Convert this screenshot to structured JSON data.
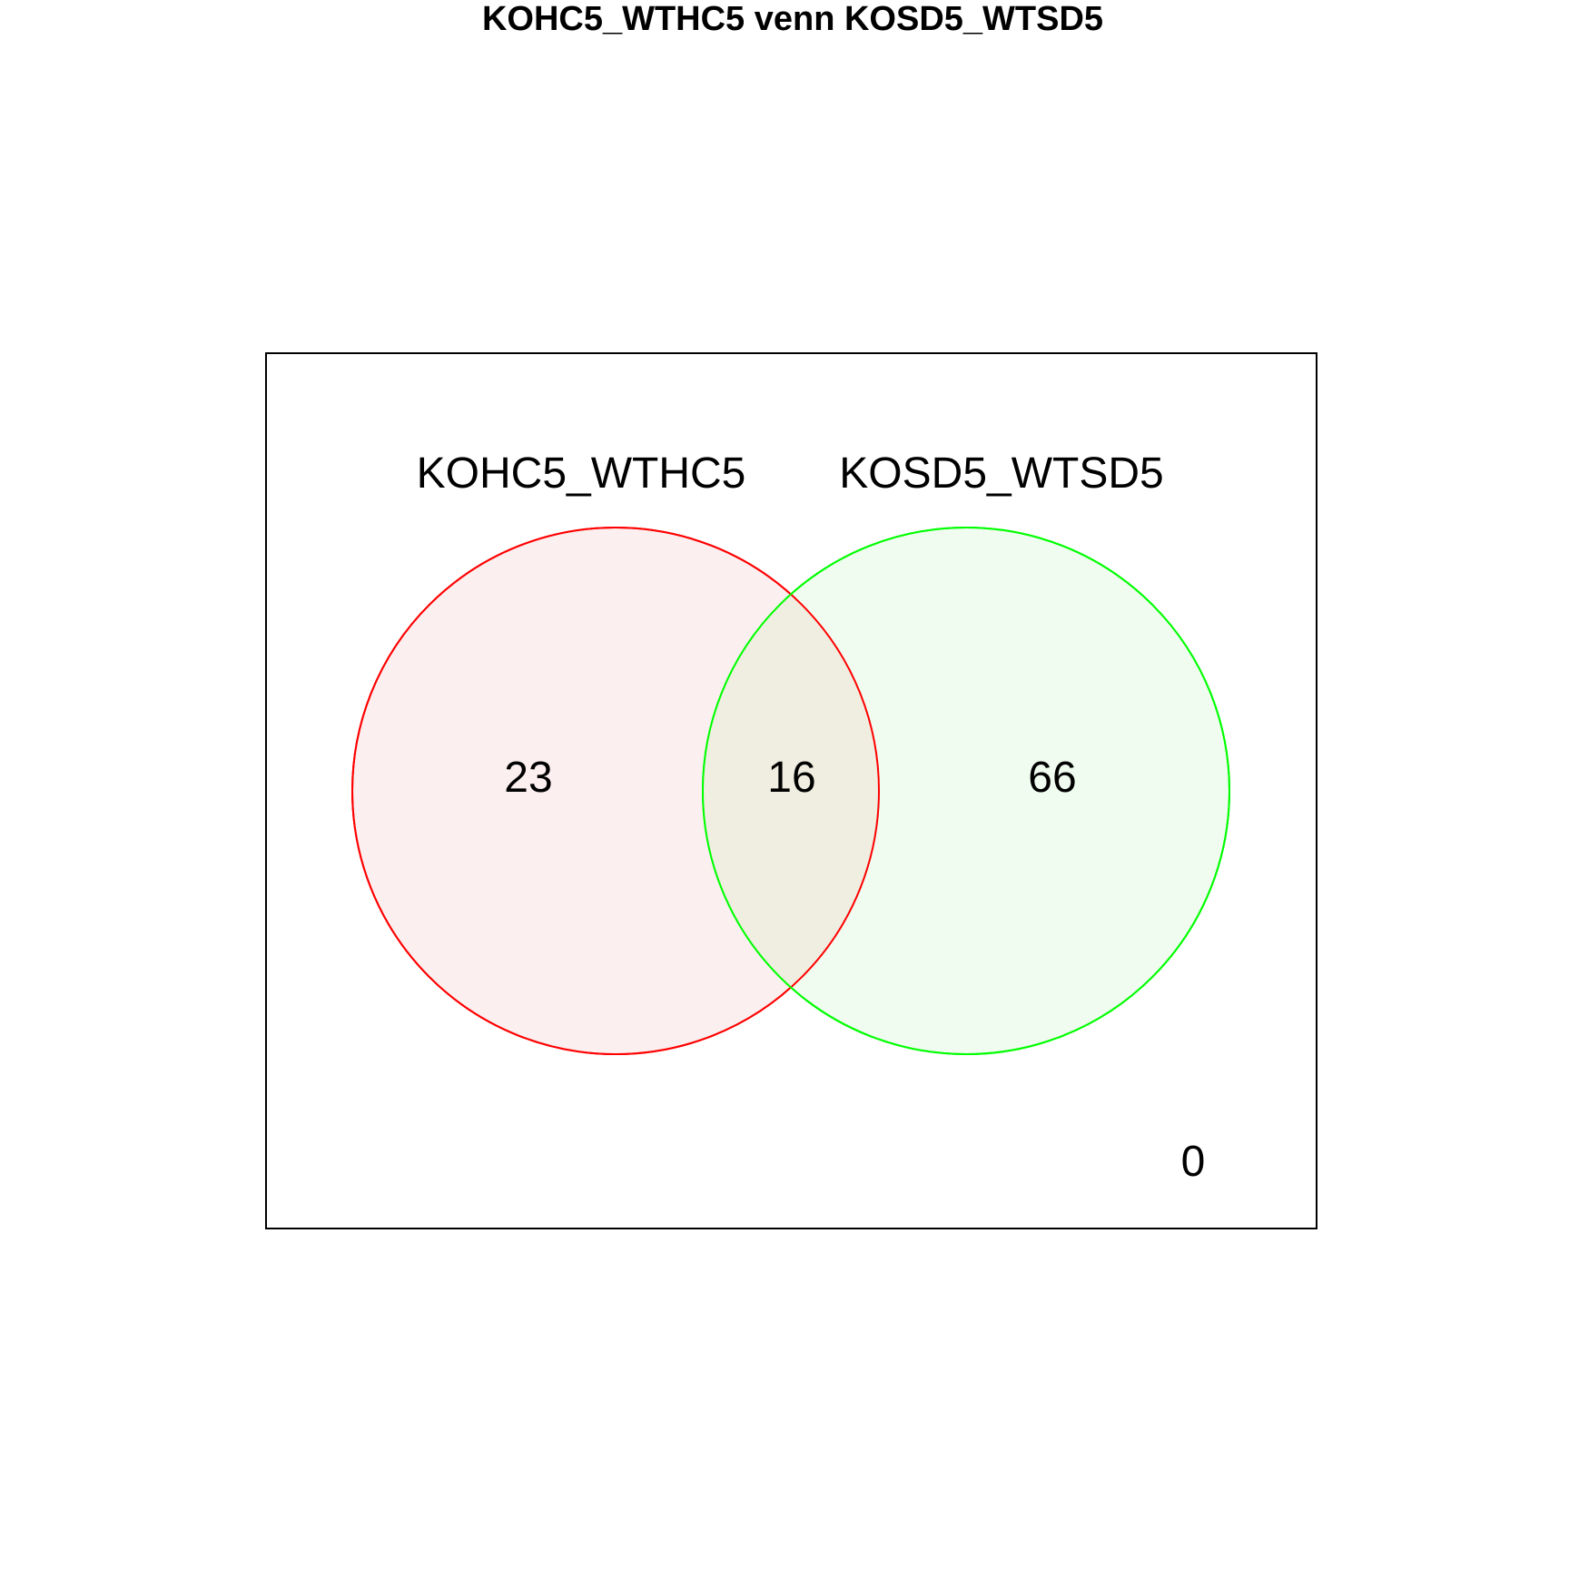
{
  "title": "KOHC5_WTHC5 venn KOSD5_WTSD5",
  "sets": [
    {
      "name": "KOHC5_WTHC5",
      "color": "#ff0000",
      "fill": "#fcefef"
    },
    {
      "name": "KOSD5_WTSD5",
      "color": "#00ff00",
      "fill": "#f0fcf0"
    }
  ],
  "intersection_fill": "#efeee0",
  "counts": {
    "only_a": "23",
    "both": "16",
    "only_b": "66",
    "neither": "0"
  }
}
